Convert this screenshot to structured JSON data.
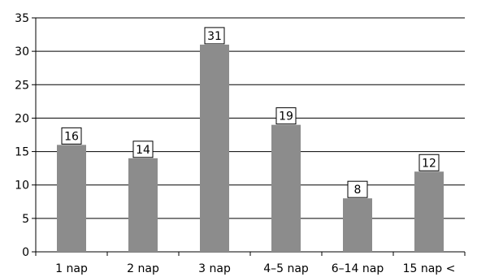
{
  "chart_data": {
    "type": "bar",
    "categories": [
      "1 nap",
      "2 nap",
      "3 nap",
      "4–5 nap",
      "6–14 nap",
      "15 nap <"
    ],
    "values": [
      16,
      14,
      31,
      19,
      8,
      12
    ],
    "ylim": [
      0,
      35
    ],
    "yticks": [
      0,
      5,
      10,
      15,
      20,
      25,
      30,
      35
    ],
    "grid": true,
    "bar_color": "#8c8c8c",
    "data_labels": true
  }
}
